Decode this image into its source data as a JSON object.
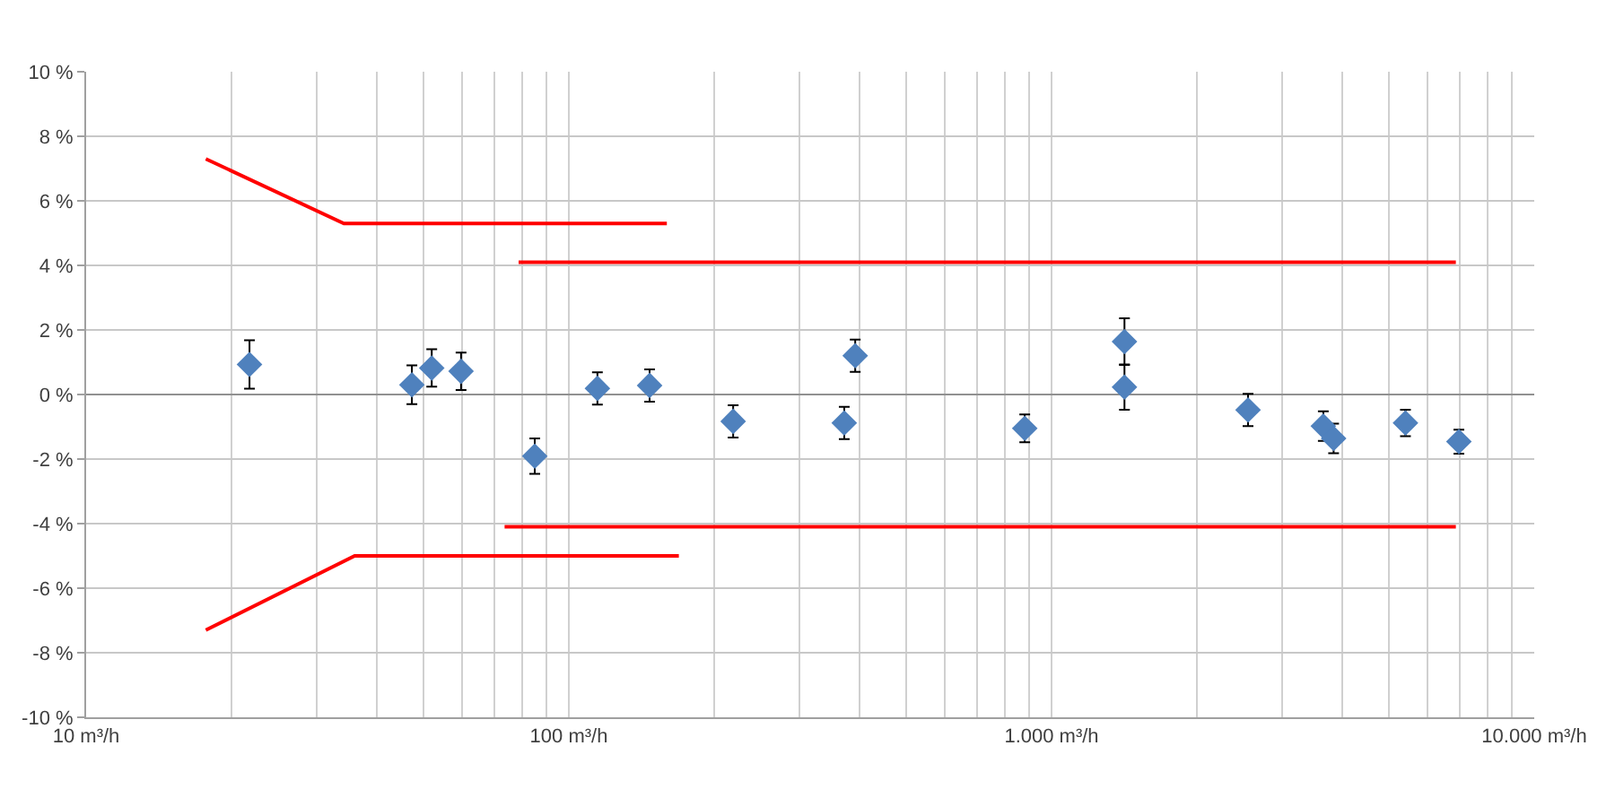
{
  "chart_data": {
    "type": "scatter",
    "log": "x",
    "grid": true,
    "xlim": [
      10,
      10000
    ],
    "xticks": [
      {
        "value": 10,
        "label": "10 m³/h"
      },
      {
        "value": 20,
        "label": null
      },
      {
        "value": 30,
        "label": null
      },
      {
        "value": 40,
        "label": null
      },
      {
        "value": 50,
        "label": null
      },
      {
        "value": 60,
        "label": null
      },
      {
        "value": 70,
        "label": null
      },
      {
        "value": 80,
        "label": null
      },
      {
        "value": 90,
        "label": null
      },
      {
        "value": 100,
        "label": "100 m³/h"
      },
      {
        "value": 200,
        "label": null
      },
      {
        "value": 300,
        "label": null
      },
      {
        "value": 400,
        "label": null
      },
      {
        "value": 500,
        "label": null
      },
      {
        "value": 600,
        "label": null
      },
      {
        "value": 700,
        "label": null
      },
      {
        "value": 800,
        "label": null
      },
      {
        "value": 900,
        "label": null
      },
      {
        "value": 1000,
        "label": "1.000 m³/h"
      },
      {
        "value": 2000,
        "label": null
      },
      {
        "value": 3000,
        "label": null
      },
      {
        "value": 4000,
        "label": null
      },
      {
        "value": 5000,
        "label": null
      },
      {
        "value": 6000,
        "label": null
      },
      {
        "value": 7000,
        "label": null
      },
      {
        "value": 8000,
        "label": null
      },
      {
        "value": 9000,
        "label": null
      },
      {
        "value": 10000,
        "label": "10.000 m³/h"
      }
    ],
    "ylim": [
      -10,
      10
    ],
    "yticks": [
      {
        "value": -10,
        "label": "-10 %"
      },
      {
        "value": -8,
        "label": "-8 %"
      },
      {
        "value": -6,
        "label": "-6 %"
      },
      {
        "value": -4,
        "label": "-4 %"
      },
      {
        "value": -2,
        "label": "-2 %"
      },
      {
        "value": 0,
        "label": "0 %"
      },
      {
        "value": 2,
        "label": "2 %"
      },
      {
        "value": 4,
        "label": "4 %"
      },
      {
        "value": 6,
        "label": "6 %"
      },
      {
        "value": 8,
        "label": "8 %"
      },
      {
        "value": 10,
        "label": "10 %"
      }
    ],
    "series": [
      {
        "marker": "diamond",
        "color": "#4f81bd",
        "x": [
          21.8,
          47.3,
          52,
          59.8,
          85,
          114.6,
          147,
          219,
          372,
          392,
          880,
          1416,
          1416,
          2553,
          3656,
          3840,
          5410,
          6980
        ],
        "values": [
          0.93,
          0.3,
          0.82,
          0.72,
          -1.91,
          0.19,
          0.28,
          -0.83,
          -0.88,
          1.2,
          -1.05,
          1.64,
          0.23,
          -0.48,
          -0.98,
          -1.36,
          -0.88,
          -1.46
        ],
        "errors": [
          0.75,
          0.6,
          0.58,
          0.58,
          0.55,
          0.5,
          0.5,
          0.5,
          0.5,
          0.5,
          0.43,
          0.72,
          0.7,
          0.5,
          0.46,
          0.46,
          0.41,
          0.37
        ]
      },
      {
        "type": "line",
        "marker": "none",
        "line_style": "solid",
        "color": "#ff0000",
        "x": [
          17.7,
          34.2,
          159.6
        ],
        "values": [
          7.3,
          5.3,
          5.3
        ]
      },
      {
        "type": "line",
        "marker": "none",
        "line_style": "solid",
        "color": "#ff0000",
        "x": [
          17.7,
          36,
          169
        ],
        "values": [
          -7.3,
          -5.0,
          -5.0
        ]
      },
      {
        "type": "line",
        "marker": "none",
        "line_style": "solid",
        "color": "#ff0000",
        "x": [
          78.7,
          6880
        ],
        "values": [
          4.1,
          4.1
        ]
      },
      {
        "type": "line",
        "marker": "none",
        "line_style": "solid",
        "color": "#ff0000",
        "x": [
          73.6,
          6880
        ],
        "values": [
          -4.1,
          -4.1
        ]
      }
    ]
  }
}
